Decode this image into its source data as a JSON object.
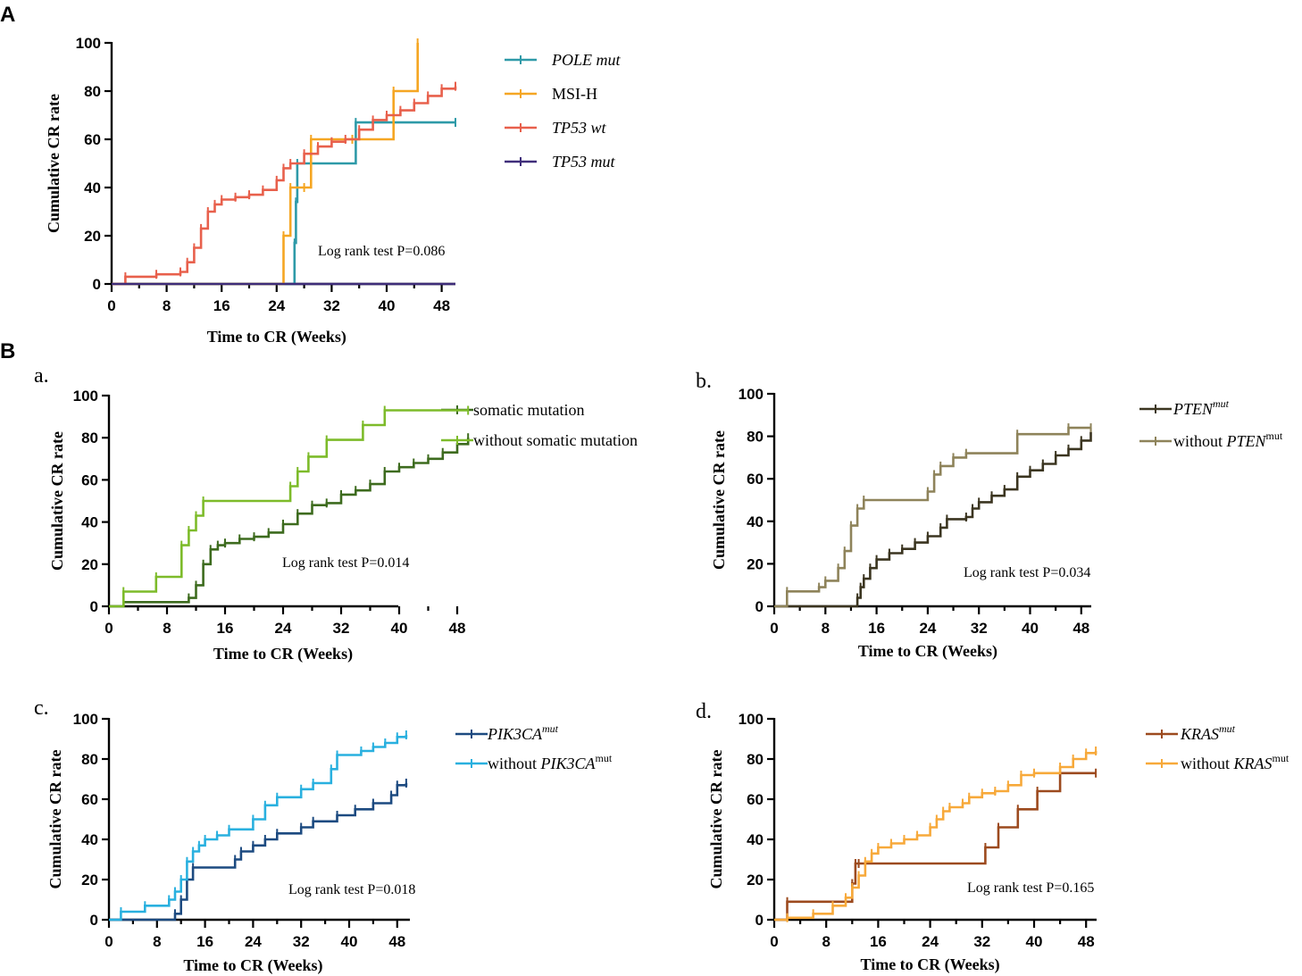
{
  "figure_labels": {
    "A": "A",
    "B": "B"
  },
  "chart_data": [
    {
      "id": "A",
      "type": "line",
      "subpanel": "",
      "title": "",
      "xlabel": "Time to CR (Weeks)",
      "ylabel": "Cumulative CR rate",
      "xlim": [
        0,
        50
      ],
      "ylim": [
        0,
        100
      ],
      "xticks": [
        "0",
        "8",
        "16",
        "24",
        "32",
        "40",
        "48"
      ],
      "yticks": [
        "0",
        "20",
        "40",
        "60",
        "80",
        "100"
      ],
      "annotation": "Log rank test P=0.086",
      "series": [
        {
          "name": "POLE mut",
          "legend_italic": true,
          "color": "#2E9AA8",
          "x": [
            0,
            26.5,
            26.6,
            26.8,
            27,
            35.5,
            50
          ],
          "y": [
            0,
            0,
            17,
            34,
            50,
            67,
            67
          ]
        },
        {
          "name": "MSI-H",
          "legend_italic": false,
          "color": "#F5A623",
          "x": [
            0,
            25,
            26,
            28,
            29,
            35,
            41,
            44.5
          ],
          "y": [
            0,
            20,
            40,
            40,
            60,
            60,
            80,
            100
          ]
        },
        {
          "name": "TP53 wt",
          "legend_italic": true,
          "color": "#E8604C",
          "x": [
            0,
            2,
            6.5,
            10,
            11,
            12,
            13,
            14,
            15,
            16,
            18,
            20,
            22,
            24,
            25,
            26,
            28,
            30,
            32,
            34,
            36,
            38,
            40,
            42,
            44,
            46,
            48,
            50
          ],
          "y": [
            0,
            3,
            4,
            5,
            9,
            15,
            23,
            30,
            33,
            35,
            36,
            37,
            39,
            43,
            48,
            50,
            54,
            57,
            59,
            60,
            64,
            68,
            70,
            72,
            75,
            78,
            81,
            82
          ]
        },
        {
          "name": "TP53 mut",
          "legend_italic": true,
          "color": "#3F2D7A",
          "x": [
            0,
            50
          ],
          "y": [
            0,
            0
          ]
        }
      ]
    },
    {
      "id": "Ba",
      "type": "line",
      "subpanel": "a.",
      "title": "",
      "xlabel": "Time to CR (Weeks)",
      "ylabel": "Cumulative CR rate",
      "xlim": [
        0,
        50
      ],
      "ylim": [
        0,
        100
      ],
      "xticks": [
        "0",
        "8",
        "16",
        "24",
        "32",
        "40",
        "48"
      ],
      "yticks": [
        "0",
        "20",
        "40",
        "60",
        "80",
        "100"
      ],
      "annotation": "Log rank test P=0.014",
      "series": [
        {
          "name": "somatic mutation",
          "color": "#3D6B1E",
          "x": [
            0,
            2,
            11,
            12,
            13,
            14,
            15,
            16,
            18,
            20,
            22,
            24,
            26,
            28,
            30,
            32,
            34,
            36,
            38,
            40,
            42,
            44,
            46,
            48,
            49.5
          ],
          "y": [
            0,
            2,
            4,
            10,
            20,
            27,
            29,
            30,
            32,
            33,
            35,
            39,
            44,
            48,
            49,
            53,
            55,
            58,
            64,
            66,
            68,
            70,
            73,
            77,
            80
          ]
        },
        {
          "name": "without somatic mutation",
          "color": "#7DBB2A",
          "x": [
            0,
            2,
            6.5,
            10,
            11,
            12,
            13,
            25,
            26,
            27.5,
            30,
            35,
            38,
            49.5
          ],
          "y": [
            0,
            7,
            14,
            29,
            36,
            43,
            50,
            57,
            64,
            71,
            79,
            86,
            93,
            93
          ]
        }
      ]
    },
    {
      "id": "Bb",
      "type": "line",
      "subpanel": "b.",
      "title": "",
      "xlabel": "Time to CR (Weeks)",
      "ylabel": "Cumulative CR rate",
      "xlim": [
        0,
        50
      ],
      "ylim": [
        0,
        100
      ],
      "xticks": [
        "0",
        "8",
        "16",
        "24",
        "32",
        "40",
        "48"
      ],
      "yticks": [
        "0",
        "20",
        "40",
        "60",
        "80",
        "100"
      ],
      "annotation": "Log rank test P=0.034",
      "series": [
        {
          "name": "PTEN",
          "name_sup": "mut",
          "color": "#3B3520",
          "x": [
            0,
            13,
            13.5,
            14,
            15,
            16,
            18,
            20,
            22,
            24,
            26,
            27,
            30,
            31,
            32,
            34,
            36,
            38,
            40,
            42,
            44,
            46,
            48,
            49.5
          ],
          "y": [
            0,
            4,
            9,
            13,
            18,
            22,
            25,
            27,
            30,
            33,
            37,
            41,
            42,
            46,
            49,
            52,
            55,
            61,
            64,
            67,
            71,
            74,
            78,
            82
          ]
        },
        {
          "name": "without ",
          "name_it": "PTEN",
          "name_sup": "mut",
          "color": "#8E835A",
          "x": [
            0,
            2,
            7,
            8,
            10,
            11,
            12,
            13,
            14,
            24,
            25,
            26,
            28,
            30,
            38,
            46,
            49.5
          ],
          "y": [
            0,
            7,
            9,
            12,
            18,
            26,
            38,
            46,
            50,
            54,
            62,
            66,
            70,
            72,
            81,
            84,
            84
          ]
        }
      ]
    },
    {
      "id": "Bc",
      "type": "line",
      "subpanel": "c.",
      "title": "",
      "xlabel": "Time to CR (Weeks)",
      "ylabel": "Cumulative CR rate",
      "xlim": [
        0,
        50
      ],
      "ylim": [
        0,
        100
      ],
      "xticks": [
        "0",
        "8",
        "16",
        "24",
        "32",
        "40",
        "48"
      ],
      "yticks": [
        "0",
        "20",
        "40",
        "60",
        "80",
        "100"
      ],
      "annotation": "Log rank test P=0.018",
      "series": [
        {
          "name": "PIK3CA",
          "name_sup": "mut",
          "color": "#1C4A80",
          "x": [
            0,
            11,
            12,
            13,
            14,
            21,
            22,
            24,
            26,
            28,
            32,
            34,
            38,
            41,
            44,
            47,
            48,
            49.5
          ],
          "y": [
            0,
            3,
            10,
            20,
            26,
            30,
            34,
            37,
            40,
            43,
            46,
            49,
            52,
            55,
            58,
            62,
            67,
            68
          ]
        },
        {
          "name": "without ",
          "name_it": "PIK3CA",
          "name_sup": "mut",
          "color": "#29B0DF",
          "x": [
            0,
            2,
            6,
            10,
            11,
            12,
            13,
            14,
            15,
            16,
            18,
            20,
            24,
            26,
            28,
            32,
            34,
            37,
            38,
            42,
            44,
            46,
            48,
            49.5
          ],
          "y": [
            0,
            4,
            7,
            10,
            14,
            20,
            29,
            34,
            37,
            40,
            42,
            45,
            50,
            57,
            61,
            65,
            68,
            75,
            82,
            84,
            86,
            88,
            91,
            92
          ]
        }
      ]
    },
    {
      "id": "Bd",
      "type": "line",
      "subpanel": "d.",
      "title": "",
      "xlabel": "Time to CR (Weeks)",
      "ylabel": "Cumulative CR rate",
      "xlim": [
        0,
        50
      ],
      "ylim": [
        0,
        100
      ],
      "xticks": [
        "0",
        "8",
        "16",
        "24",
        "32",
        "40",
        "48"
      ],
      "yticks": [
        "0",
        "20",
        "40",
        "60",
        "80",
        "100"
      ],
      "annotation": "Log rank test P=0.165",
      "series": [
        {
          "name": "KRAS",
          "name_sup": "mut",
          "color": "#9C4A1E",
          "x": [
            0,
            2,
            12,
            12.5,
            13,
            32.5,
            34.5,
            37.5,
            40.5,
            44,
            49.5
          ],
          "y": [
            0,
            9,
            18,
            28,
            28,
            36,
            46,
            55,
            64,
            73,
            73
          ]
        },
        {
          "name": "without ",
          "name_it": "KRAS",
          "name_sup": "mut",
          "color": "#F7A93A",
          "x": [
            0,
            2,
            6,
            9,
            11,
            12,
            13,
            14,
            15,
            16,
            18,
            20,
            22,
            24,
            25,
            26,
            27,
            29,
            30,
            32,
            34,
            36,
            38,
            40,
            44,
            46,
            48,
            49.5
          ],
          "y": [
            0,
            1,
            3,
            7,
            11,
            16,
            22,
            29,
            33,
            36,
            38,
            40,
            42,
            46,
            50,
            54,
            56,
            58,
            61,
            63,
            64,
            67,
            72,
            73,
            76,
            80,
            83,
            84
          ]
        }
      ]
    }
  ]
}
